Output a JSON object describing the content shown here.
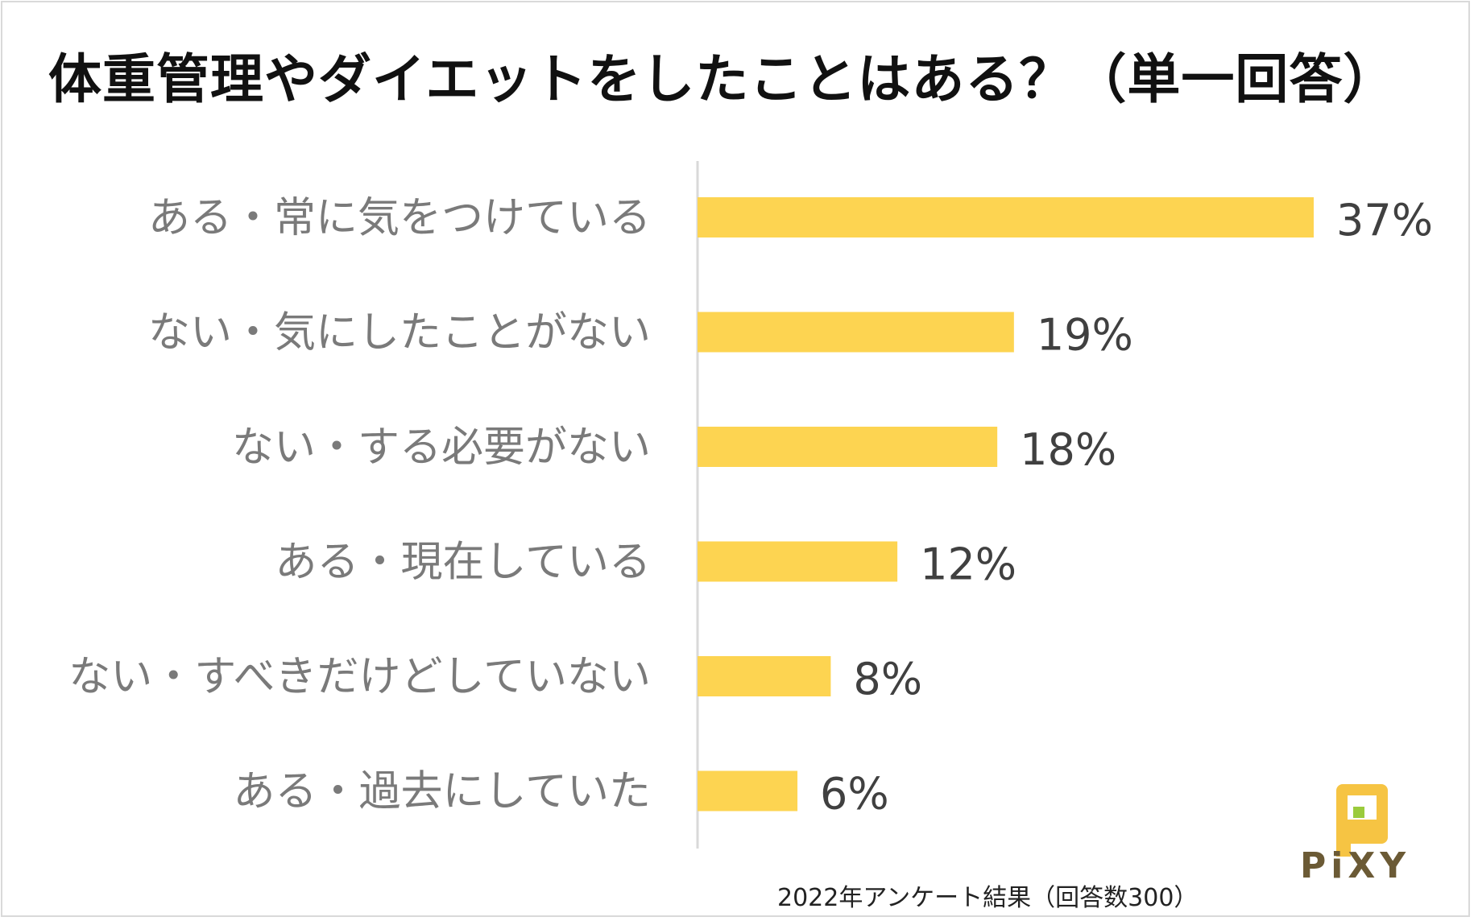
{
  "title": "体重管理やダイエットをしたことはある？（単一回答）",
  "chart_data": {
    "type": "bar",
    "orientation": "horizontal",
    "title": "体重管理やダイエットをしたことはある？（単一回答）",
    "categories": [
      "ある・常に気をつけている",
      "ない・気にしたことがない",
      "ない・する必要がない",
      "ある・現在している",
      "ない・すべきだけどしていない",
      "ある・過去にしていた"
    ],
    "values": [
      37,
      19,
      18,
      12,
      8,
      6
    ],
    "value_labels": [
      "37%",
      "19%",
      "18%",
      "12%",
      "8%",
      "6%"
    ],
    "unit": "%",
    "bar_color": "#FDD451",
    "axis_line_color": "#d9d9d9",
    "grid": false,
    "legend": "none"
  },
  "footer": "2022年アンケート結果（回答数300）",
  "logo": {
    "text": "PiXY",
    "icon": "pixy-logo-icon",
    "colors": {
      "primary": "#F6C443",
      "accent": "#9ACB3C"
    }
  }
}
